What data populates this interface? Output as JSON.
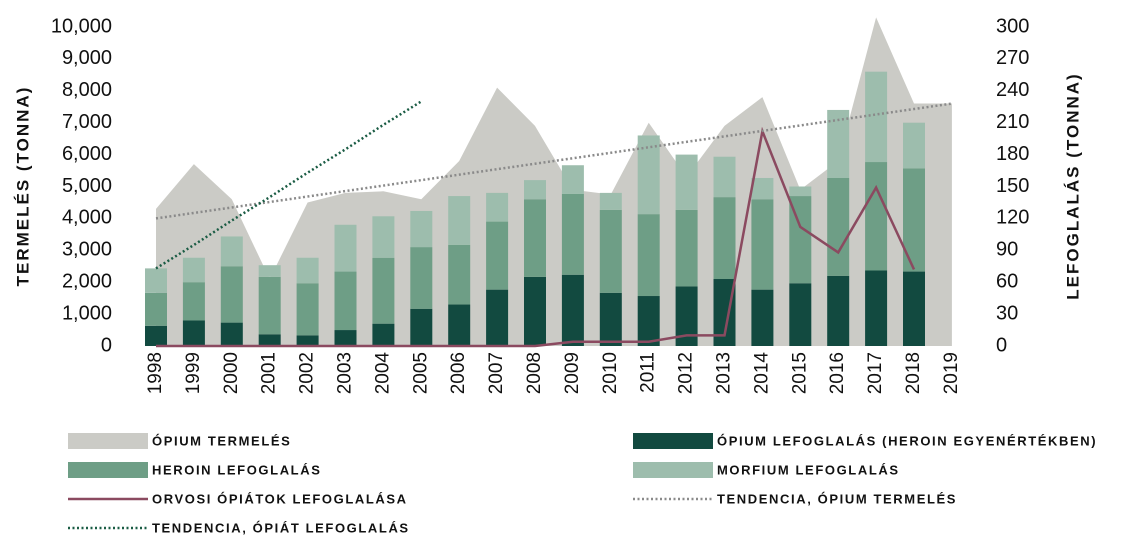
{
  "chart_data": {
    "type": "bar",
    "ylabel": "TERMELÉS (TONNA)",
    "y2label": "LEFOGLALÁS (TONNA)",
    "categories": [
      "1998",
      "1999",
      "2000",
      "2001",
      "2002",
      "2003",
      "2004",
      "2005",
      "2006",
      "2007",
      "2008",
      "2009",
      "2010",
      "2011",
      "2012",
      "2013",
      "2014",
      "2015",
      "2016",
      "2017",
      "2018",
      "2019"
    ],
    "ylim": [
      0,
      10000
    ],
    "yticks": [
      0,
      {
        "value": 1000,
        "label": "1,000"
      },
      {
        "value": 2000,
        "label": "2,000"
      },
      {
        "value": 3000,
        "label": "3,000"
      },
      {
        "value": 4000,
        "label": "4,000"
      },
      {
        "value": 5000,
        "label": "5,000"
      },
      {
        "value": 6000,
        "label": "6,000"
      },
      {
        "value": 7000,
        "label": "7,000"
      },
      {
        "value": 8000,
        "label": "8,000"
      },
      {
        "value": 9000,
        "label": "9,000"
      },
      {
        "value": 10000,
        "label": "10,000"
      }
    ],
    "y2lim": [
      0,
      300
    ],
    "y2ticks": [
      0,
      30,
      60,
      90,
      120,
      150,
      180,
      210,
      240,
      270,
      300
    ],
    "stacked": true,
    "series": [
      {
        "name": "ÓPIUM TERMELÉS",
        "type": "area",
        "color": "#cbcbc6",
        "values": [
          4300,
          5700,
          4600,
          2100,
          4500,
          4800,
          4850,
          4600,
          5800,
          8100,
          6900,
          4900,
          4750,
          7000,
          5300,
          6900,
          7800,
          4900,
          5800,
          10300,
          7600,
          7600
        ]
      },
      {
        "name": "ÓPIUM LEFOGLALÁS (HEROIN EGYENÉRTÉKBEN)",
        "type": "bar",
        "axis": "y2",
        "color": "#124a40",
        "values": [
          19,
          24,
          22,
          11,
          10,
          15,
          21,
          35,
          39,
          53,
          65,
          67,
          50,
          47,
          56,
          63,
          53,
          59,
          66,
          71,
          70,
          null
        ]
      },
      {
        "name": "HEROIN LEFOGLALÁS",
        "type": "bar",
        "axis": "y2",
        "color": "#6e9e86",
        "values": [
          31,
          36,
          53,
          54,
          49,
          55,
          62,
          58,
          56,
          64,
          73,
          76,
          78,
          77,
          72,
          77,
          85,
          82,
          92,
          102,
          97,
          null
        ]
      },
      {
        "name": "MORFIUM LEFOGLALÁS",
        "type": "bar",
        "axis": "y2",
        "color": "#9dbdad",
        "values": [
          23,
          23,
          28,
          11,
          24,
          44,
          39,
          34,
          46,
          27,
          18,
          27,
          16,
          74,
          52,
          38,
          20,
          9,
          64,
          85,
          43,
          null
        ]
      },
      {
        "name": "ORVOSI ÓPIÁTOK LEFOGLALÁSA",
        "type": "line",
        "axis": "y2",
        "color": "#8b4a60",
        "values": [
          0,
          0,
          0,
          0,
          0,
          0,
          0,
          0,
          0,
          0,
          0,
          4,
          4,
          4,
          10,
          10,
          202,
          112,
          88,
          149,
          72,
          null
        ]
      },
      {
        "name": "TENDENCIA, ÓPIUM TERMELÉS",
        "type": "line",
        "style": "dotted",
        "color": "#8a8a8a",
        "values": [
          4000,
          4171,
          4343,
          4514,
          4686,
          4857,
          5029,
          5200,
          5371,
          5543,
          5714,
          5886,
          6057,
          6229,
          6400,
          6571,
          6743,
          6914,
          7086,
          7257,
          7429,
          7600
        ]
      },
      {
        "name": "TENDENCIA, ÓPIÁT LEFOGLALÁS",
        "type": "line",
        "axis": "y2",
        "style": "dotted",
        "color": "#1a5c44",
        "values": [
          73,
          95,
          118,
          140,
          163,
          185,
          208,
          230,
          null,
          null,
          null,
          null,
          null,
          null,
          null,
          null,
          null,
          null,
          null,
          null,
          null,
          null
        ]
      }
    ]
  }
}
